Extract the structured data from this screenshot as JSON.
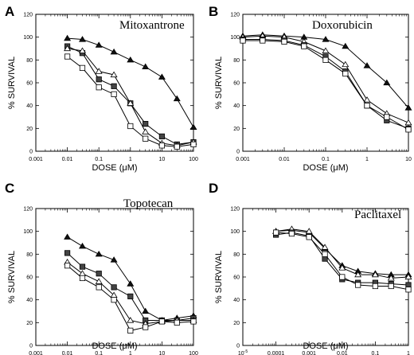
{
  "figure": {
    "x_unit_sup_prefix": "10",
    "x_unit_sup_exp": "-5"
  },
  "chart_data": [
    {
      "type": "line",
      "panel": "A",
      "drug": "Mitoxantrone",
      "xlabel": "DOSE (μM)",
      "ylabel": "% SURVIVAL",
      "xscale": "log",
      "xlim": [
        0.001,
        100
      ],
      "ylim": [
        0,
        120
      ],
      "xticks": [
        "0.001",
        "0.01",
        "0.1",
        "1",
        "10",
        "100"
      ],
      "xtick_values": [
        0.001,
        0.01,
        0.1,
        1,
        10,
        100
      ],
      "yticks": [
        "0",
        "20",
        "40",
        "60",
        "80",
        "100",
        "120"
      ],
      "x": [
        0.01,
        0.03,
        0.1,
        0.3,
        1,
        3,
        10,
        30,
        100
      ],
      "series": [
        {
          "marker": "filled-triangle",
          "values": [
            99,
            98,
            93,
            87,
            80,
            74,
            65,
            46,
            21
          ]
        },
        {
          "marker": "filled-square",
          "values": [
            92,
            86,
            63,
            57,
            42,
            24,
            13,
            6,
            8
          ]
        },
        {
          "marker": "open-triangle",
          "values": [
            90,
            88,
            70,
            67,
            42,
            17,
            7,
            5,
            8
          ]
        },
        {
          "marker": "open-square",
          "values": [
            83,
            73,
            56,
            50,
            22,
            11,
            5,
            4,
            6
          ]
        }
      ],
      "grid": false,
      "legend": "none"
    },
    {
      "type": "line",
      "panel": "B",
      "drug": "Doxorubicin",
      "xlabel": "DOSE (μM)",
      "ylabel": "% SURVIVAL",
      "xscale": "log",
      "xlim": [
        0.001,
        10
      ],
      "ylim": [
        0,
        120
      ],
      "xticks": [
        "0.001",
        "0.01",
        "0.1",
        "1",
        "10"
      ],
      "xtick_values": [
        0.001,
        0.01,
        0.1,
        1,
        10
      ],
      "yticks": [
        "0",
        "20",
        "40",
        "60",
        "80",
        "100",
        "120"
      ],
      "x": [
        0.001,
        0.003,
        0.01,
        0.03,
        0.1,
        0.3,
        1,
        3,
        10
      ],
      "series": [
        {
          "marker": "filled-triangle",
          "values": [
            101,
            102,
            101,
            100,
            98,
            92,
            75,
            60,
            38
          ]
        },
        {
          "marker": "open-triangle",
          "values": [
            100,
            101,
            100,
            96,
            88,
            76,
            45,
            33,
            25
          ]
        },
        {
          "marker": "filled-square",
          "values": [
            98,
            98,
            97,
            93,
            83,
            70,
            40,
            27,
            20
          ]
        },
        {
          "marker": "open-square",
          "values": [
            97,
            97,
            96,
            92,
            80,
            68,
            40,
            30,
            19
          ]
        }
      ],
      "grid": false,
      "legend": "none"
    },
    {
      "type": "line",
      "panel": "C",
      "drug": "Topotecan",
      "xlabel": "DOSE (μM)",
      "ylabel": "% SURVIVAL",
      "xscale": "log",
      "xlim": [
        0.001,
        100
      ],
      "ylim": [
        0,
        120
      ],
      "xticks": [
        "0.001",
        "0.01",
        "0.1",
        "1",
        "10",
        "100"
      ],
      "xtick_values": [
        0.001,
        0.01,
        0.1,
        1,
        10,
        100
      ],
      "yticks": [
        "0",
        "20",
        "40",
        "60",
        "80",
        "100",
        "120"
      ],
      "x": [
        0.01,
        0.03,
        0.1,
        0.3,
        1,
        3,
        10,
        30,
        100
      ],
      "series": [
        {
          "marker": "filled-triangle",
          "values": [
            95,
            87,
            80,
            75,
            54,
            30,
            22,
            24,
            26
          ]
        },
        {
          "marker": "filled-square",
          "values": [
            81,
            69,
            63,
            51,
            43,
            22,
            22,
            22,
            24
          ]
        },
        {
          "marker": "open-triangle",
          "values": [
            73,
            63,
            56,
            44,
            22,
            19,
            21,
            22,
            22
          ]
        },
        {
          "marker": "open-square",
          "values": [
            70,
            59,
            51,
            40,
            13,
            16,
            21,
            20,
            21
          ]
        }
      ],
      "grid": false,
      "legend": "none"
    },
    {
      "type": "line",
      "panel": "D",
      "drug": "Paclitaxel",
      "xlabel": "DOSE (μM)",
      "ylabel": "% SURVIVAL",
      "xscale": "log",
      "xlim": [
        1e-05,
        1
      ],
      "ylim": [
        0,
        120
      ],
      "xticks": [
        "0.0001",
        "0.001",
        "0.01",
        "0.1",
        "1"
      ],
      "xtick_values": [
        0.0001,
        0.001,
        0.01,
        0.1,
        1
      ],
      "yticks": [
        "0",
        "20",
        "40",
        "60",
        "80",
        "100",
        "120"
      ],
      "x": [
        0.0001,
        0.0003,
        0.001,
        0.003,
        0.01,
        0.03,
        0.1,
        0.3,
        1
      ],
      "series": [
        {
          "marker": "filled-triangle",
          "values": [
            100,
            101,
            99,
            85,
            70,
            65,
            63,
            62,
            62
          ]
        },
        {
          "marker": "open-triangle",
          "values": [
            100,
            102,
            100,
            86,
            68,
            62,
            62,
            59,
            60
          ]
        },
        {
          "marker": "filled-square",
          "values": [
            97,
            99,
            96,
            76,
            58,
            55,
            55,
            54,
            53
          ]
        },
        {
          "marker": "open-square",
          "values": [
            99,
            98,
            95,
            80,
            60,
            53,
            52,
            52,
            49
          ]
        }
      ],
      "grid": false,
      "legend": "none"
    }
  ]
}
